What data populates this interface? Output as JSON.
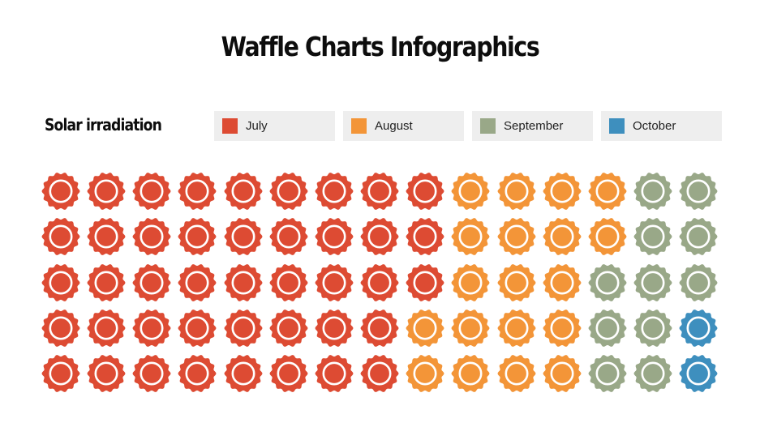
{
  "title": "Waffle Charts Infographics",
  "subtitle": "Solar irradiation",
  "legend": [
    {
      "label": "July",
      "color": "#DD4B33"
    },
    {
      "label": "August",
      "color": "#F39538"
    },
    {
      "label": "September",
      "color": "#99A888"
    },
    {
      "label": "October",
      "color": "#3E8FBE"
    }
  ],
  "grid": {
    "rows": 5,
    "cols": 15,
    "cells": [
      [
        "July",
        "July",
        "July",
        "July",
        "July",
        "July",
        "July",
        "July",
        "July",
        "August",
        "August",
        "August",
        "August",
        "September",
        "September"
      ],
      [
        "July",
        "July",
        "July",
        "July",
        "July",
        "July",
        "July",
        "July",
        "July",
        "August",
        "August",
        "August",
        "August",
        "September",
        "September"
      ],
      [
        "July",
        "July",
        "July",
        "July",
        "July",
        "July",
        "July",
        "July",
        "July",
        "August",
        "August",
        "August",
        "September",
        "September",
        "September"
      ],
      [
        "July",
        "July",
        "July",
        "July",
        "July",
        "July",
        "July",
        "July",
        "August",
        "August",
        "August",
        "August",
        "September",
        "September",
        "October"
      ],
      [
        "July",
        "July",
        "July",
        "July",
        "July",
        "July",
        "July",
        "July",
        "August",
        "August",
        "August",
        "August",
        "September",
        "September",
        "October"
      ]
    ]
  },
  "chart_data": {
    "type": "waffle",
    "title": "Waffle Charts Infographics",
    "subtitle": "Solar irradiation",
    "categories": [
      "July",
      "August",
      "September",
      "October"
    ],
    "values": [
      43,
      19,
      11,
      2
    ],
    "colors": [
      "#DD4B33",
      "#F39538",
      "#99A888",
      "#3E8FBE"
    ],
    "total_units": 75,
    "grid": {
      "rows": 5,
      "cols": 15
    },
    "legend_position": "top"
  }
}
